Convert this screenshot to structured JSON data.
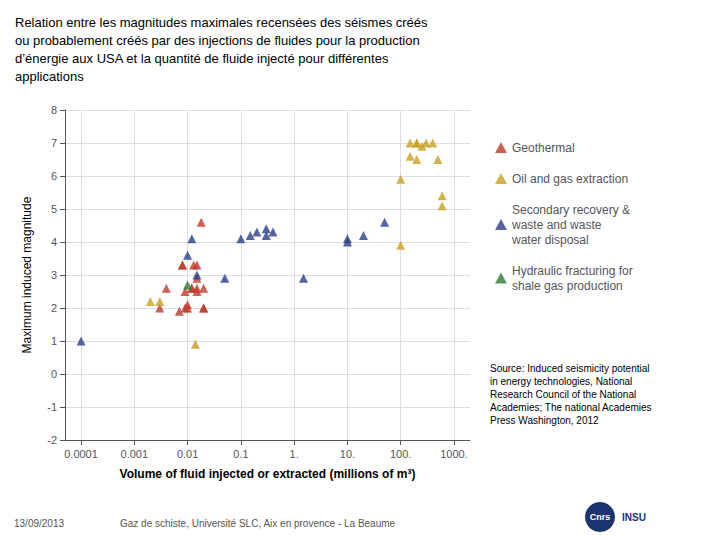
{
  "chart_data": {
    "type": "scatter",
    "title": "Relation entre les magnitudes maximales recensées des séismes créés\nou probablement créés par des injections de fluides pour la production\nd’énergie aux USA et la quantité de fluide injecté pour différentes\napplications",
    "x_label": "Volume of fluid injected or extracted (millions of m³)",
    "y_label": "Maximum induced magnitude",
    "annotations": [
      "Source: Induced seismicity potential\nin energy technologies, National\nResearch Council of the National\nAcademies; The national Academies\nPress Washington, 2012",
      "13/09/2013",
      "Gaz de schiste, Université SLC, Aix en provence - La Beaume",
      "Cnrs",
      "INSU"
    ],
    "log": "x",
    "grid": true,
    "legend": "right",
    "marker": "triangle",
    "xlim": [
      5e-05,
      2000
    ],
    "xticks": [
      0.0001,
      0.001,
      0.01,
      0.1,
      {
        "value": 1.0,
        "label": "1."
      },
      {
        "value": 10.0,
        "label": "10."
      },
      {
        "value": 100.0,
        "label": "100."
      },
      {
        "value": 1000.0,
        "label": "1000."
      }
    ],
    "ylim": [
      -2,
      8
    ],
    "yticks": [
      -2,
      -1,
      0,
      1,
      2,
      3,
      4,
      5,
      6,
      7,
      8
    ],
    "series": [
      {
        "name": "Geothermal",
        "color": "#C0392B",
        "x": [
          0.003,
          0.004,
          0.007,
          0.008,
          0.008,
          0.009,
          0.009,
          0.01,
          0.01,
          0.012,
          0.012,
          0.013,
          0.015,
          0.015,
          0.015,
          0.015,
          0.018,
          0.02,
          0.02,
          0.02
        ],
        "values": [
          2.0,
          2.6,
          1.9,
          3.3,
          3.3,
          2.0,
          2.5,
          2.1,
          2.0,
          2.6,
          2.6,
          3.3,
          3.3,
          2.9,
          2.6,
          2.5,
          4.6,
          2.6,
          2.0,
          2.0
        ]
      },
      {
        "name": "Oil and gas extraction",
        "color": "#C8A020",
        "x": [
          0.002,
          0.003,
          0.014,
          100.0,
          100.0,
          150.0,
          150.0,
          200.0,
          200.0,
          200.0,
          250.0,
          300.0,
          400.0,
          500.0,
          600.0,
          600.0
        ],
        "values": [
          2.2,
          2.2,
          0.9,
          5.9,
          3.9,
          7.0,
          6.6,
          7.0,
          7.0,
          6.5,
          6.9,
          7.0,
          7.0,
          6.5,
          5.4,
          5.1
        ]
      },
      {
        "name": "Secondary recovery &\nwaste and waste\nwater disposal",
        "color": "#2C3E8A",
        "x": [
          0.0001,
          0.01,
          0.012,
          0.015,
          0.1,
          0.15,
          0.2,
          0.3,
          0.3,
          0.4,
          1.5,
          10.0,
          10.0,
          20.0,
          50.0,
          0.05
        ],
        "values": [
          1.0,
          3.6,
          4.1,
          3.0,
          4.1,
          4.2,
          4.3,
          4.4,
          4.2,
          4.3,
          2.9,
          4.0,
          4.1,
          4.2,
          4.6,
          2.9
        ]
      },
      {
        "name": "Hydraulic fracturing for\nshale gas production",
        "color": "#2E7D32",
        "x": [
          0.01
        ],
        "values": [
          2.7
        ]
      }
    ]
  }
}
